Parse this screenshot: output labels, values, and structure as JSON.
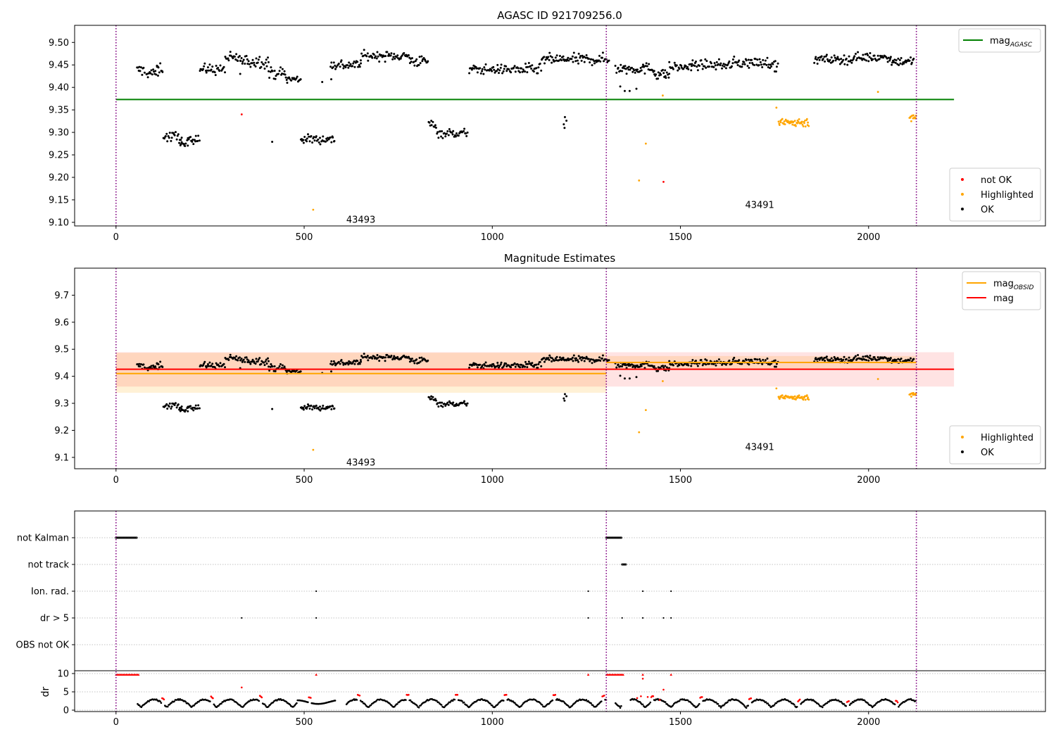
{
  "colors": {
    "ok": "#000000",
    "not_ok": "#ff0000",
    "highlighted": "#ffa500",
    "mag_agasc": "#008000",
    "mag_obsid": "#ffa500",
    "mag": "#ff0000",
    "obs_boundary": "#800080"
  },
  "chart_data": [
    {
      "type": "scatter",
      "title": "AGASC ID 921709256.0",
      "xlim": [
        -110,
        2470
      ],
      "ylim": [
        9.092,
        9.538
      ],
      "xticks": [
        0,
        500,
        1000,
        1500,
        2000
      ],
      "yticks": [
        9.1,
        9.15,
        9.2,
        9.25,
        9.3,
        9.35,
        9.4,
        9.45,
        9.5
      ],
      "ytick_labels": [
        "9.10",
        "9.15",
        "9.20",
        "9.25",
        "9.30",
        "9.35",
        "9.40",
        "9.45",
        "9.50"
      ],
      "obs_boundaries": [
        0,
        1303,
        2127
      ],
      "obs_labels": [
        {
          "text": "43493",
          "x": 612,
          "y": 9.107
        },
        {
          "text": "43491",
          "x": 1672,
          "y": 9.14
        }
      ],
      "lines": [
        {
          "name": "mag_AGASC",
          "label_main": "mag",
          "label_sub": "AGASC",
          "y": 9.373,
          "x0": 0,
          "x1": 2227,
          "color": "#008000"
        }
      ],
      "legends": [
        {
          "position": "upper right",
          "entries": [
            {
              "kind": "line",
              "color": "#008000",
              "label": "mag",
              "sub": "AGASC"
            }
          ]
        },
        {
          "position": "lower right",
          "entries": [
            {
              "kind": "dot",
              "color": "#ff0000",
              "label": "not OK"
            },
            {
              "kind": "dot",
              "color": "#ffa500",
              "label": "Highlighted"
            },
            {
              "kind": "dot",
              "color": "#000000",
              "label": "OK"
            }
          ]
        }
      ],
      "ok_segments": [
        [
          55,
          75,
          9.438,
          0.012
        ],
        [
          80,
          112,
          9.432,
          0.012
        ],
        [
          108,
          125,
          9.443,
          0.012
        ],
        [
          125,
          175,
          9.29,
          0.012
        ],
        [
          170,
          190,
          9.271,
          0.01
        ],
        [
          190,
          222,
          9.288,
          0.012
        ],
        [
          222,
          290,
          9.44,
          0.012
        ],
        [
          290,
          330,
          9.465,
          0.012
        ],
        [
          330,
          405,
          9.458,
          0.014
        ],
        [
          405,
          450,
          9.432,
          0.012
        ],
        [
          450,
          490,
          9.418,
          0.01
        ],
        [
          490,
          582,
          9.285,
          0.01
        ],
        [
          570,
          650,
          9.45,
          0.012
        ],
        [
          650,
          780,
          9.47,
          0.01
        ],
        [
          780,
          830,
          9.458,
          0.012
        ],
        [
          830,
          852,
          9.318,
          0.01
        ],
        [
          852,
          935,
          9.298,
          0.01
        ],
        [
          938,
          1050,
          9.44,
          0.01
        ],
        [
          1050,
          1130,
          9.44,
          0.012
        ],
        [
          1130,
          1190,
          9.462,
          0.012
        ],
        [
          1190,
          1310,
          9.462,
          0.012
        ],
        [
          1330,
          1430,
          9.442,
          0.012
        ],
        [
          1430,
          1470,
          9.43,
          0.012
        ],
        [
          1470,
          1530,
          9.445,
          0.01
        ],
        [
          1530,
          1640,
          9.45,
          0.01
        ],
        [
          1640,
          1745,
          9.455,
          0.012
        ],
        [
          1745,
          1760,
          9.445,
          0.015
        ],
        [
          1855,
          1960,
          9.462,
          0.01
        ],
        [
          1960,
          2060,
          9.467,
          0.01
        ],
        [
          2060,
          2120,
          9.458,
          0.01
        ]
      ],
      "ok_points": [
        [
          415,
          9.279
        ],
        [
          330,
          9.43
        ],
        [
          1193,
          9.334
        ],
        [
          1190,
          9.318
        ],
        [
          1197,
          9.326
        ],
        [
          1192,
          9.31
        ],
        [
          548,
          9.412
        ],
        [
          572,
          9.418
        ],
        [
          1340,
          9.402
        ],
        [
          1352,
          9.392
        ],
        [
          1365,
          9.392
        ],
        [
          1383,
          9.397
        ],
        [
          1403,
          9.447
        ],
        [
          1327,
          9.448
        ],
        [
          1460,
          9.425
        ]
      ],
      "highlighted_segments": [
        [
          1760,
          1840,
          9.322,
          0.01
        ],
        [
          2108,
          2127,
          9.335,
          0.01
        ]
      ],
      "highlighted_points": [
        [
          524,
          9.128
        ],
        [
          1390,
          9.193
        ],
        [
          1408,
          9.275
        ],
        [
          1453,
          9.382
        ],
        [
          2025,
          9.39
        ],
        [
          1755,
          9.355
        ]
      ],
      "not_ok_points": [
        [
          334,
          9.34
        ],
        [
          1455,
          9.19
        ]
      ]
    },
    {
      "type": "scatter",
      "title": "Magnitude Estimates",
      "xlim": [
        -110,
        2470
      ],
      "ylim": [
        9.058,
        9.8
      ],
      "xticks": [
        0,
        500,
        1000,
        1500,
        2000
      ],
      "yticks": [
        9.1,
        9.2,
        9.3,
        9.4,
        9.5,
        9.6,
        9.7
      ],
      "ytick_labels": [
        "9.1",
        "9.2",
        "9.3",
        "9.4",
        "9.5",
        "9.6",
        "9.7"
      ],
      "obs_boundaries": [
        0,
        1303,
        2127
      ],
      "obs_labels": [
        {
          "text": "43493",
          "x": 612,
          "y": 9.083
        },
        {
          "text": "43491",
          "x": 1672,
          "y": 9.14
        }
      ],
      "bands": [
        {
          "x0": 0,
          "x1": 1303,
          "y0": 9.339,
          "y1": 9.487,
          "color": "#ffa500",
          "opacity": 0.16
        },
        {
          "x0": 1303,
          "x1": 2127,
          "y0": 9.425,
          "y1": 9.475,
          "color": "#ffa500",
          "opacity": 0.16
        },
        {
          "x0": 0,
          "x1": 2227,
          "y0": 9.362,
          "y1": 9.489,
          "color": "#ff0000",
          "opacity": 0.11
        }
      ],
      "lines": [
        {
          "name": "mag_OBSID",
          "label_main": "mag",
          "label_sub": "OBSID",
          "segments": [
            [
              0,
              1303,
              9.41
            ],
            [
              1303,
              2127,
              9.451
            ]
          ],
          "color": "#ffa500"
        },
        {
          "name": "mag",
          "label_main": "mag",
          "y": 9.426,
          "x0": 0,
          "x1": 2227,
          "color": "#ff0000"
        }
      ],
      "legends": [
        {
          "position": "upper right",
          "entries": [
            {
              "kind": "line",
              "color": "#ffa500",
              "label": "mag",
              "sub": "OBSID"
            },
            {
              "kind": "line",
              "color": "#ff0000",
              "label": "mag",
              "sub": ""
            }
          ]
        },
        {
          "position": "lower right",
          "entries": [
            {
              "kind": "dot",
              "color": "#ffa500",
              "label": "Highlighted"
            },
            {
              "kind": "dot",
              "color": "#000000",
              "label": "OK"
            }
          ]
        }
      ],
      "same_points_as": 0
    },
    {
      "type": "event-strip",
      "xlim": [
        -110,
        2470
      ],
      "xticks": [
        0,
        500,
        1000,
        1500,
        2000
      ],
      "categories": [
        "not Kalman",
        "not track",
        "Ion. rad.",
        "dr > 5",
        "OBS not OK"
      ],
      "obs_boundaries": [
        0,
        1303,
        2127
      ],
      "events": [
        {
          "row": 0,
          "x0": 0,
          "x1": 57
        },
        {
          "row": 0,
          "x0": 1303,
          "x1": 1345
        },
        {
          "row": 1,
          "x0": 1345,
          "x1": 1357
        },
        {
          "row": 2,
          "x": [
            532,
            1255,
            1400,
            1475
          ]
        },
        {
          "row": 3,
          "x": [
            334,
            532,
            1255,
            1345,
            1400,
            1455,
            1475
          ]
        }
      ],
      "dr": {
        "ylabel": "dr",
        "ylim": [
          0,
          10
        ],
        "yticks": [
          0,
          5,
          10
        ],
        "sat_segments": [
          [
            0,
            60
          ],
          [
            1303,
            1350
          ]
        ],
        "sat_points": [
          532,
          1255,
          1400,
          1475
        ],
        "red_points": [
          [
            334,
            6.2
          ],
          [
            1400,
            8.6
          ],
          [
            1455,
            5.6
          ],
          [
            1385,
            3.3
          ],
          [
            1395,
            3.8
          ],
          [
            1413,
            3.6
          ],
          [
            1445,
            2.8
          ]
        ]
      }
    }
  ]
}
